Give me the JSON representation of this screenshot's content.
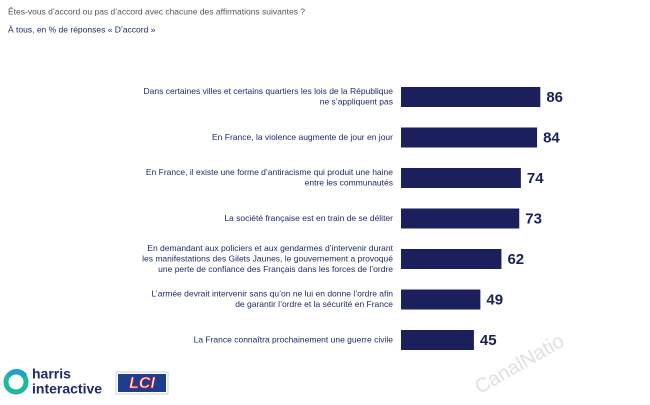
{
  "chart_data": {
    "type": "bar",
    "orientation": "horizontal",
    "title": "Êtes-vous d’accord ou pas d’accord avec chacune des affirmations suivantes ?",
    "subtitle": "À tous, en % de réponses « D’accord »",
    "categories": [
      [
        "Dans certaines villes et certains quartiers les lois de la République",
        "ne s’appliquent pas"
      ],
      [
        "En France, la violence augmente de jour en jour"
      ],
      [
        "En France, il existe une forme d’antiracisme qui produit une haine",
        "entre les communautés"
      ],
      [
        "La société française est en train de se déliter"
      ],
      [
        "En demandant aux policiers et aux gendarmes d’intervenir durant",
        "les manifestations des Gilets Jaunes, le gouvernement a provoqué",
        "une perte de confiance des Français dans les forces de l’ordre"
      ],
      [
        "L’armée devrait intervenir sans qu’on ne lui en donne l’ordre afin",
        "de garantir l’ordre et la sécurité en France"
      ],
      [
        "La France connaîtra prochainement une guerre civile"
      ]
    ],
    "values": [
      86,
      84,
      74,
      73,
      62,
      49,
      45
    ],
    "color": "#1b1f5c",
    "logos": {
      "harris": [
        "harris",
        "interactive"
      ],
      "lci": "LCI"
    },
    "watermark": "CanalNatio"
  }
}
